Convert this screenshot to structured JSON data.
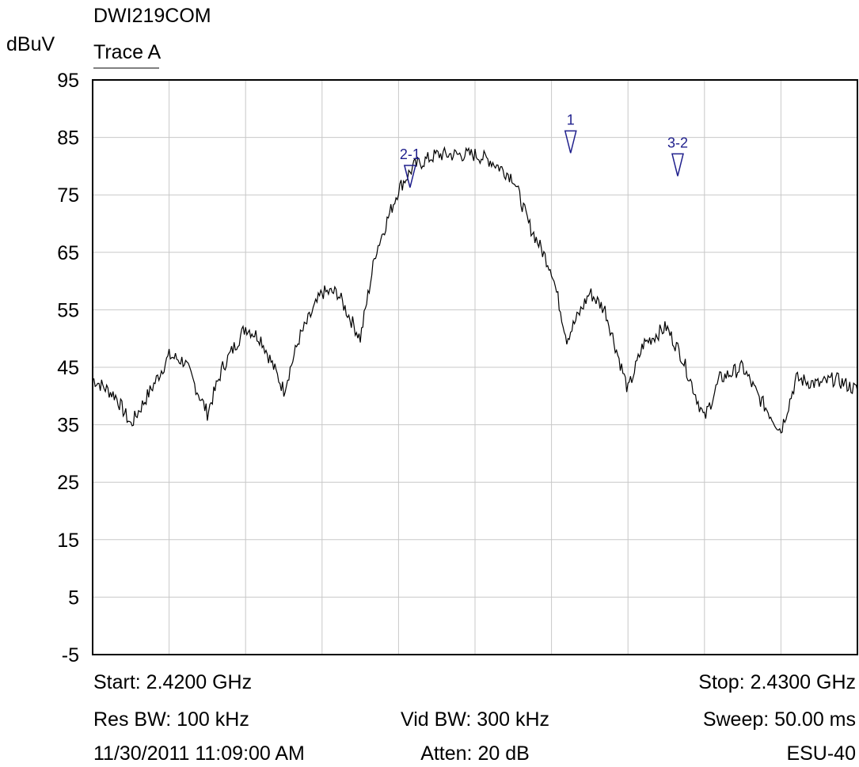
{
  "header": {
    "title": "DWI219COM",
    "trace_label": "Trace A",
    "y_unit": "dBuV"
  },
  "footer": {
    "start": "Start: 2.4200 GHz",
    "stop": "Stop: 2.4300 GHz",
    "res_bw": "Res BW: 100 kHz",
    "vid_bw": "Vid BW: 300 kHz",
    "sweep": "Sweep: 50.00 ms",
    "timestamp": "11/30/2011 11:09:00 AM",
    "atten": "Atten: 20 dB",
    "instrument": "ESU-40"
  },
  "colors": {
    "trace": "#000000",
    "grid": "#c8c8c8",
    "marker": "#1f1f8c",
    "frame": "#000000"
  },
  "chart_data": {
    "type": "line",
    "title": "DWI219COM",
    "ylabel": "dBuV",
    "xlabel": "",
    "xlim": [
      2.42,
      2.43
    ],
    "ylim": [
      -5,
      95
    ],
    "x_divisions": 10,
    "yticks": [
      95,
      85,
      75,
      65,
      55,
      45,
      35,
      25,
      15,
      5,
      -5
    ],
    "grid": true,
    "series": [
      {
        "name": "Trace A",
        "x": [
          2.42,
          2.4203,
          2.4205,
          2.4208,
          2.421,
          2.4212,
          2.4215,
          2.4217,
          2.422,
          2.4222,
          2.4225,
          2.4227,
          2.423,
          2.4232,
          2.4235,
          2.4237,
          2.424,
          2.4242,
          2.4245,
          2.4247,
          2.425,
          2.4252,
          2.4255,
          2.4257,
          2.426,
          2.4262,
          2.4265,
          2.4267,
          2.427,
          2.4272,
          2.4275,
          2.4277,
          2.428,
          2.4282,
          2.4285,
          2.4287,
          2.429,
          2.4292,
          2.4295,
          2.4297,
          2.43
        ],
        "y": [
          43,
          40,
          35,
          42,
          47,
          46,
          37,
          45,
          52,
          50,
          41,
          50,
          58,
          58,
          50,
          65,
          76,
          80,
          82,
          82,
          82,
          81,
          78,
          70,
          62,
          50,
          58,
          55,
          41,
          49,
          52,
          47,
          36,
          43,
          45,
          40,
          34,
          43,
          42,
          43,
          41
        ]
      }
    ],
    "markers": [
      {
        "label": "1",
        "x": 2.42625,
        "y": 82
      },
      {
        "label": "2-1",
        "x": 2.42415,
        "y": 76
      },
      {
        "label": "3-2",
        "x": 2.42765,
        "y": 78
      }
    ]
  }
}
